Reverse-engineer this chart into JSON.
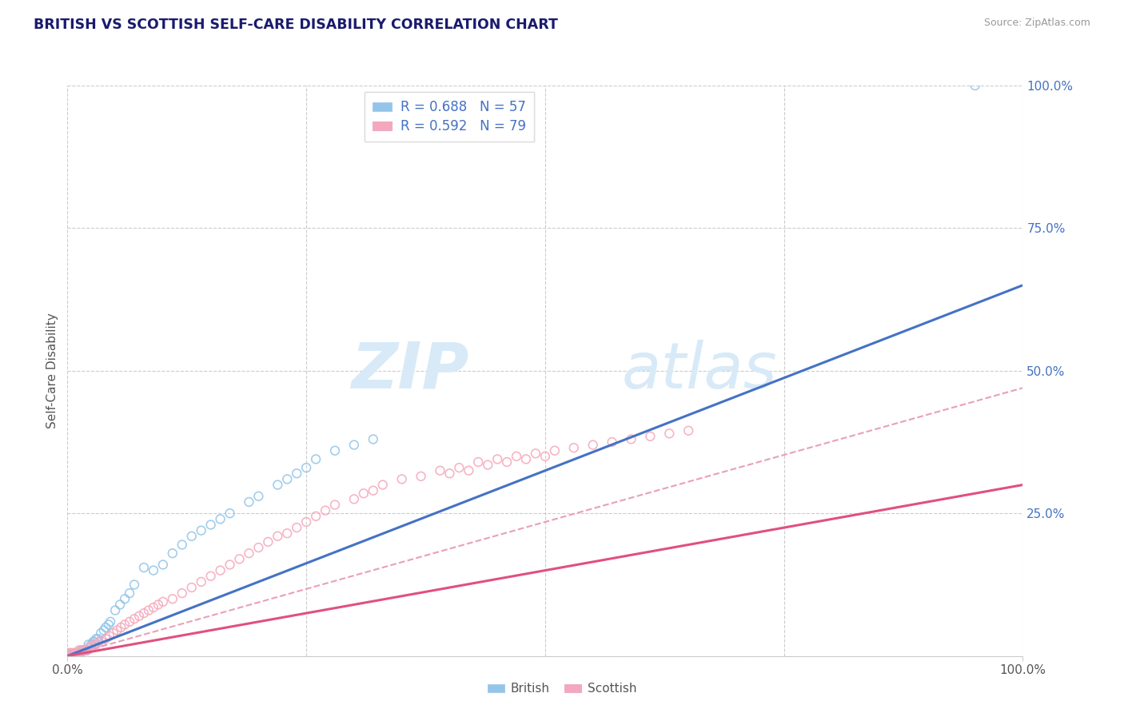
{
  "title": "BRITISH VS SCOTTISH SELF-CARE DISABILITY CORRELATION CHART",
  "source": "Source: ZipAtlas.com",
  "ylabel": "Self-Care Disability",
  "xlim": [
    0,
    1.0
  ],
  "ylim": [
    0,
    1.0
  ],
  "legend_r_british": "R = 0.688",
  "legend_n_british": "N = 57",
  "legend_r_scottish": "R = 0.592",
  "legend_n_scottish": "N = 79",
  "british_color": "#92c5e8",
  "scottish_color": "#f4a8bc",
  "british_line_color": "#4472c4",
  "scottish_line_color": "#e05080",
  "scottish_dashed_color": "#e8a0b8",
  "title_color": "#1a1a6e",
  "source_color": "#999999",
  "tick_color_right": "#4472c4",
  "british_x": [
    0.001,
    0.002,
    0.003,
    0.004,
    0.005,
    0.006,
    0.007,
    0.008,
    0.009,
    0.01,
    0.011,
    0.012,
    0.013,
    0.014,
    0.015,
    0.016,
    0.018,
    0.019,
    0.02,
    0.021,
    0.022,
    0.025,
    0.027,
    0.028,
    0.03,
    0.032,
    0.035,
    0.038,
    0.04,
    0.043,
    0.045,
    0.05,
    0.055,
    0.06,
    0.065,
    0.07,
    0.08,
    0.09,
    0.1,
    0.11,
    0.12,
    0.13,
    0.14,
    0.15,
    0.16,
    0.17,
    0.19,
    0.2,
    0.22,
    0.23,
    0.24,
    0.25,
    0.26,
    0.28,
    0.3,
    0.32,
    0.95
  ],
  "british_y": [
    0.005,
    0.005,
    0.005,
    0.005,
    0.005,
    0.005,
    0.005,
    0.005,
    0.005,
    0.005,
    0.005,
    0.005,
    0.005,
    0.005,
    0.01,
    0.01,
    0.01,
    0.01,
    0.01,
    0.01,
    0.02,
    0.02,
    0.025,
    0.025,
    0.03,
    0.03,
    0.04,
    0.045,
    0.05,
    0.055,
    0.06,
    0.08,
    0.09,
    0.1,
    0.11,
    0.125,
    0.155,
    0.15,
    0.16,
    0.18,
    0.195,
    0.21,
    0.22,
    0.23,
    0.24,
    0.25,
    0.27,
    0.28,
    0.3,
    0.31,
    0.32,
    0.33,
    0.345,
    0.36,
    0.37,
    0.38,
    1.0
  ],
  "scottish_x": [
    0.001,
    0.002,
    0.003,
    0.004,
    0.005,
    0.006,
    0.007,
    0.008,
    0.009,
    0.01,
    0.012,
    0.014,
    0.016,
    0.018,
    0.02,
    0.022,
    0.025,
    0.028,
    0.03,
    0.033,
    0.036,
    0.04,
    0.044,
    0.048,
    0.052,
    0.056,
    0.06,
    0.065,
    0.07,
    0.075,
    0.08,
    0.085,
    0.09,
    0.095,
    0.1,
    0.11,
    0.12,
    0.13,
    0.14,
    0.15,
    0.16,
    0.17,
    0.18,
    0.19,
    0.2,
    0.21,
    0.22,
    0.23,
    0.24,
    0.25,
    0.26,
    0.27,
    0.28,
    0.3,
    0.31,
    0.32,
    0.33,
    0.35,
    0.37,
    0.39,
    0.41,
    0.43,
    0.45,
    0.47,
    0.49,
    0.51,
    0.53,
    0.55,
    0.57,
    0.59,
    0.61,
    0.63,
    0.65,
    0.4,
    0.42,
    0.44,
    0.46,
    0.48,
    0.5
  ],
  "scottish_y": [
    0.005,
    0.005,
    0.005,
    0.005,
    0.005,
    0.005,
    0.005,
    0.005,
    0.005,
    0.005,
    0.01,
    0.01,
    0.01,
    0.01,
    0.01,
    0.015,
    0.015,
    0.02,
    0.02,
    0.025,
    0.025,
    0.03,
    0.035,
    0.04,
    0.045,
    0.05,
    0.055,
    0.06,
    0.065,
    0.07,
    0.075,
    0.08,
    0.085,
    0.09,
    0.095,
    0.1,
    0.11,
    0.12,
    0.13,
    0.14,
    0.15,
    0.16,
    0.17,
    0.18,
    0.19,
    0.2,
    0.21,
    0.215,
    0.225,
    0.235,
    0.245,
    0.255,
    0.265,
    0.275,
    0.285,
    0.29,
    0.3,
    0.31,
    0.315,
    0.325,
    0.33,
    0.34,
    0.345,
    0.35,
    0.355,
    0.36,
    0.365,
    0.37,
    0.375,
    0.38,
    0.385,
    0.39,
    0.395,
    0.32,
    0.325,
    0.335,
    0.34,
    0.345,
    0.35
  ],
  "british_reg": [
    0.0,
    1.0,
    0.0,
    0.65
  ],
  "scottish_reg": [
    0.0,
    1.0,
    0.0,
    0.3
  ],
  "scottish_dashed": [
    0.0,
    1.0,
    0.0,
    0.47
  ]
}
